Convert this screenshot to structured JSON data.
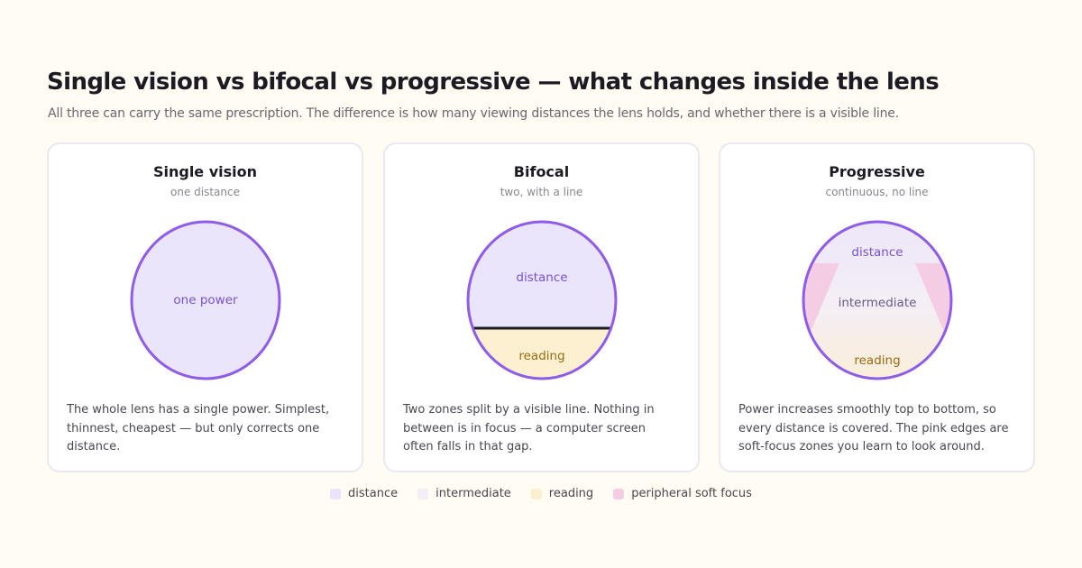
{
  "header": {
    "title": "Single vision vs bifocal vs progressive — what changes inside the lens",
    "subtitle": "All three can carry the same prescription. The difference is how many viewing distances the lens holds, and whether there is a visible line."
  },
  "cards": [
    {
      "title": "Single vision",
      "subtitle": "one distance",
      "zones": [
        "one power"
      ],
      "description": "The whole lens has a single power. Simplest, thinnest, cheapest — but only corrects one distance."
    },
    {
      "title": "Bifocal",
      "subtitle": "two, with a line",
      "zones": [
        "distance",
        "reading"
      ],
      "description": "Two zones split by a visible line. Nothing in between is in focus — a computer screen often falls in that gap."
    },
    {
      "title": "Progressive",
      "subtitle": "continuous, no line",
      "zones": [
        "distance",
        "intermediate",
        "reading"
      ],
      "description": "Power increases smoothly top to bottom, so every distance is covered. The pink edges are soft-focus zones you learn to look around."
    }
  ],
  "legend": [
    "distance",
    "intermediate",
    "reading",
    "peripheral soft focus"
  ]
}
